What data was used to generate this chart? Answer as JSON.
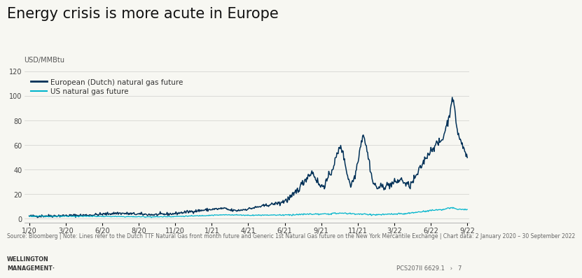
{
  "title": "Energy crisis is more acute in Europe",
  "ylabel": "USD/MMBtu",
  "ylim": [
    -3,
    122
  ],
  "yticks": [
    0,
    20,
    40,
    60,
    80,
    100,
    120
  ],
  "xtick_labels": [
    "1/20",
    "3/20",
    "6/20",
    "8/20",
    "11/20",
    "1/21",
    "4/21",
    "6/21",
    "9/21",
    "11/21",
    "3/22",
    "6/22",
    "9/22"
  ],
  "european_color": "#003057",
  "us_color": "#00b4cc",
  "legend_european": "European (Dutch) natural gas future",
  "legend_us": "US natural gas future",
  "source_text": "Source: Bloomberg | Note: Lines refer to the Dutch TTF Natural Gas front month future and Generic 1st Natural Gas future on the New York Mercantile Exchange | Chart data: 2 January 2020 – 30 September 2022",
  "footer_left1": "WELLINGTON",
  "footer_left2": "MANAGEMENT·",
  "footer_right": "PCS207II 6629.1   ›   7",
  "background_color": "#f7f7f2",
  "title_fontsize": 15,
  "tick_fontsize": 7,
  "legend_fontsize": 7.5,
  "source_fontsize": 5.5
}
